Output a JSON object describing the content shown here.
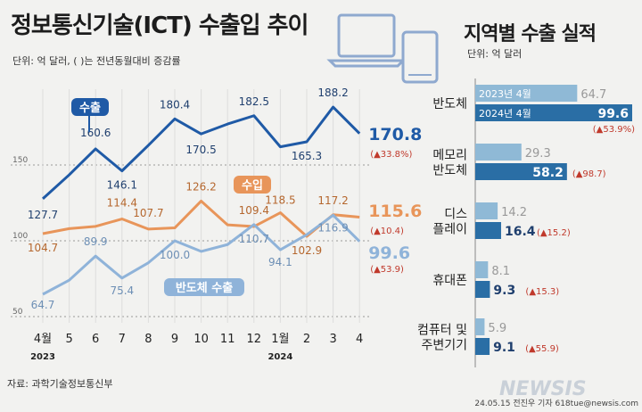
{
  "left": {
    "title": "정보통신기술(ICT) 수출입 추이",
    "unit": "단위: 억 달러, ( )는 전년동월대비 증감률",
    "source": "자료: 과학기술정보통신부",
    "y_ticks": [
      "150",
      "100",
      "50"
    ],
    "x_months": [
      "4월",
      "5",
      "6",
      "7",
      "8",
      "9",
      "10",
      "11",
      "12",
      "1월",
      "2",
      "3",
      "4"
    ],
    "x_years": [
      "2023",
      "2024"
    ],
    "series_labels": {
      "export": "수출",
      "import": "수입",
      "semi": "반도체 수출"
    },
    "final": {
      "export": {
        "value": "170.8",
        "change": "(▲33.8%)"
      },
      "import": {
        "value": "115.6",
        "change": "(▲10.4)"
      },
      "semi": {
        "value": "99.6",
        "change": "(▲53.9)"
      }
    }
  },
  "right": {
    "title": "지역별 수출 실적",
    "unit": "단위: 억 달러",
    "legend_2023": "2023년 4월",
    "legend_2024": "2024년 4월",
    "categories": [
      {
        "label_lines": [
          "반도체"
        ],
        "v2023": "64.7",
        "v2024": "99.6",
        "change": "(▲53.9%)"
      },
      {
        "label_lines": [
          "메모리",
          "반도체"
        ],
        "v2023": "29.3",
        "v2024": "58.2",
        "change": "(▲98.7)"
      },
      {
        "label_lines": [
          "디스",
          "플레이"
        ],
        "v2023": "14.2",
        "v2024": "16.4",
        "change": "(▲15.2)"
      },
      {
        "label_lines": [
          "휴대폰"
        ],
        "v2023": "8.1",
        "v2024": "9.3",
        "change": "(▲15.3)"
      },
      {
        "label_lines": [
          "컴퓨터 및",
          "주변기기"
        ],
        "v2023": "5.9",
        "v2024": "9.1",
        "change": "(▲55.9)"
      }
    ]
  },
  "credit": "24.05.15 전진우 기자 618tue@newsis.com",
  "watermark": "NEWSIS",
  "colors": {
    "export": "#1f5aa6",
    "import": "#e8955a",
    "semi": "#8fb3d9",
    "bar2023": "#8fb9d6",
    "bar2024": "#2a6ea5"
  },
  "chart_data": [
    {
      "type": "line",
      "title": "정보통신기술(ICT) 수출입 추이",
      "x": [
        "2023-04",
        "2023-05",
        "2023-06",
        "2023-07",
        "2023-08",
        "2023-09",
        "2023-10",
        "2023-11",
        "2023-12",
        "2024-01",
        "2024-02",
        "2024-03",
        "2024-04"
      ],
      "ylim": [
        50,
        200
      ],
      "series": [
        {
          "name": "수출",
          "values": [
            127.7,
            143.5,
            160.6,
            146.1,
            163.0,
            180.4,
            170.5,
            177.0,
            182.5,
            162.0,
            165.3,
            188.2,
            170.8
          ]
        },
        {
          "name": "수입",
          "values": [
            104.7,
            108.0,
            109.5,
            114.4,
            107.7,
            108.5,
            126.2,
            110.5,
            109.4,
            118.5,
            102.9,
            117.2,
            115.6
          ]
        },
        {
          "name": "반도체 수출",
          "values": [
            64.7,
            74.0,
            89.9,
            75.4,
            85.5,
            100.0,
            93.0,
            97.5,
            110.7,
            94.1,
            104.0,
            116.9,
            99.6
          ]
        }
      ],
      "labeled_points": {
        "수출": {
          "2023-04": "127.7",
          "2023-06": "160.6",
          "2023-07": "146.1",
          "2023-09": "180.4",
          "2023-10": "170.5",
          "2023-12": "182.5",
          "2024-02": "165.3",
          "2024-03": "188.2"
        },
        "수입": {
          "2023-04": "104.7",
          "2023-07": "114.4",
          "2023-08": "107.7",
          "2023-10": "126.2",
          "2023-12": "109.4",
          "2024-01": "118.5",
          "2024-02": "102.9",
          "2024-03": "117.2"
        },
        "반도체 수출": {
          "2023-04": "64.7",
          "2023-06": "89.9",
          "2023-07": "75.4",
          "2023-09": "100.0",
          "2023-12": "110.7",
          "2024-01": "94.1",
          "2024-03": "116.9"
        }
      }
    },
    {
      "type": "bar",
      "title": "지역별 수출 실적",
      "categories": [
        "반도체",
        "메모리 반도체",
        "디스플레이",
        "휴대폰",
        "컴퓨터 및 주변기기"
      ],
      "series": [
        {
          "name": "2023년 4월",
          "values": [
            64.7,
            29.3,
            14.2,
            8.1,
            5.9
          ]
        },
        {
          "name": "2024년 4월",
          "values": [
            99.6,
            58.2,
            16.4,
            9.3,
            9.1
          ]
        }
      ],
      "xlim": [
        0,
        110
      ]
    }
  ]
}
